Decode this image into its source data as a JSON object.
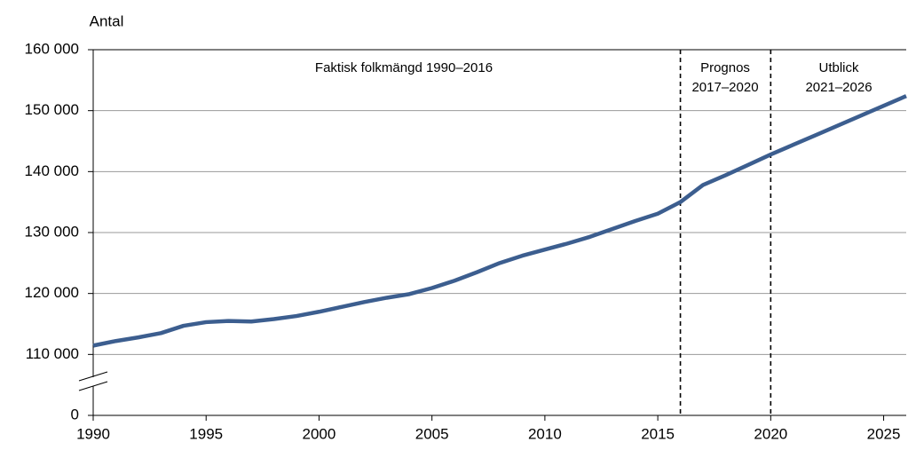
{
  "chart_data": {
    "type": "line",
    "y_axis_label": "Antal",
    "x": [
      1990,
      1991,
      1992,
      1993,
      1994,
      1995,
      1996,
      1997,
      1998,
      1999,
      2000,
      2001,
      2002,
      2003,
      2004,
      2005,
      2006,
      2007,
      2008,
      2009,
      2010,
      2011,
      2012,
      2013,
      2014,
      2015,
      2016,
      2017,
      2018,
      2019,
      2020,
      2021,
      2022,
      2023,
      2024,
      2025,
      2026
    ],
    "series": [
      {
        "name": "Folkmängd",
        "color": "#3c5e8f",
        "values": [
          111450,
          112200,
          112800,
          113500,
          114700,
          115300,
          115500,
          115400,
          115800,
          116300,
          117000,
          117800,
          118600,
          119300,
          119900,
          120900,
          122100,
          123500,
          125000,
          126200,
          127200,
          128200,
          129300,
          130600,
          131900,
          133100,
          135000,
          137800,
          139400,
          141100,
          142800,
          144400,
          146000,
          147600,
          149200,
          150800,
          152400
        ]
      }
    ],
    "xlim": [
      1990,
      2026
    ],
    "xticks": [
      1990,
      1995,
      2000,
      2005,
      2010,
      2015,
      2020,
      2025
    ],
    "ylim": [
      100000,
      160000
    ],
    "yticks": [
      {
        "value": 110000,
        "label": "110 000"
      },
      {
        "value": 120000,
        "label": "120 000"
      },
      {
        "value": 130000,
        "label": "130 000"
      },
      {
        "value": 140000,
        "label": "140 000"
      },
      {
        "value": 150000,
        "label": "150 000"
      },
      {
        "value": 160000,
        "label": "160 000"
      }
    ],
    "y_break": {
      "value": 0,
      "label": "0"
    },
    "grid": true,
    "vlines": [
      2016,
      2020
    ],
    "annotations": [
      [
        "Faktisk folkmängd 1990–2016"
      ],
      [
        "Prognos",
        "2017–2020"
      ],
      [
        "Utblick",
        "2021–2026"
      ]
    ]
  }
}
